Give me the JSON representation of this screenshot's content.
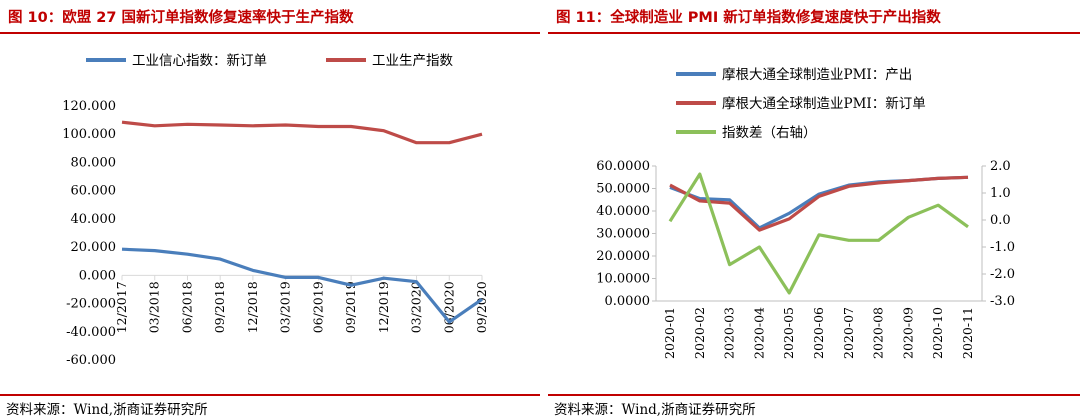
{
  "left": {
    "title": "图 10：欧盟 27 国新订单指数修复速率快于生产指数",
    "source": "资料来源：Wind,浙商证券研究所",
    "chart_data": {
      "type": "line",
      "title": "",
      "categories": [
        "12/2017",
        "03/2018",
        "06/2018",
        "09/2018",
        "12/2018",
        "03/2019",
        "06/2019",
        "09/2019",
        "12/2019",
        "03/2020",
        "06/2020",
        "09/2020"
      ],
      "series": [
        {
          "name": "工业信心指数：新订单",
          "color": "#4a7ebb",
          "values": [
            18.5,
            17.5,
            15,
            11.5,
            3.5,
            -1.5,
            -1.5,
            -7,
            -2,
            -4.5,
            -33,
            -17
          ]
        },
        {
          "name": "工业生产指数",
          "color": "#be4b48",
          "values": [
            108.5,
            106,
            107,
            106.5,
            106,
            106.5,
            105.5,
            105.5,
            102.5,
            94,
            94,
            100
          ]
        }
      ],
      "ylim": [
        -60,
        120
      ],
      "yticks": [
        120,
        100,
        80,
        60,
        40,
        20,
        0,
        -20,
        -40,
        -60
      ],
      "ytick_labels": [
        "120.000",
        "100.000",
        "80.000",
        "60.000",
        "40.000",
        "20.000",
        "0.000",
        "-20.000",
        "-40.000",
        "-60.000"
      ],
      "legend_position": "top"
    }
  },
  "right": {
    "title": "图 11：全球制造业 PMI 新订单指数修复速度快于产出指数",
    "source": "资料来源：Wind,浙商证券研究所",
    "chart_data": {
      "type": "line",
      "title": "",
      "categories": [
        "2020-01",
        "2020-02",
        "2020-03",
        "2020-04",
        "2020-05",
        "2020-06",
        "2020-07",
        "2020-08",
        "2020-09",
        "2020-10",
        "2020-11"
      ],
      "series": [
        {
          "name": "摩根大通全球制造业PMI：产出",
          "color": "#4a7ebb",
          "axis": "left",
          "values": [
            50.5,
            45.5,
            45,
            32.5,
            39,
            47.5,
            51.5,
            53,
            53.5,
            54.5,
            55
          ]
        },
        {
          "name": "摩根大通全球制造业PMI：新订单",
          "color": "#be4b48",
          "axis": "left",
          "values": [
            51.5,
            44.5,
            43.5,
            31.5,
            36.5,
            46.5,
            51,
            52.5,
            53.5,
            54.5,
            55
          ]
        },
        {
          "name": "指数差（右轴）",
          "color": "#8cc05a",
          "axis": "right",
          "values": [
            -0.05,
            1.7,
            -1.65,
            -1.0,
            -2.7,
            -0.55,
            -0.75,
            -0.75,
            0.1,
            0.55,
            -0.25
          ]
        }
      ],
      "ylim": [
        0,
        60
      ],
      "yticks": [
        60,
        50,
        40,
        30,
        20,
        10,
        0
      ],
      "ytick_labels": [
        "60.0000",
        "50.0000",
        "40.0000",
        "30.0000",
        "20.0000",
        "10.0000",
        "0.0000"
      ],
      "y2lim": [
        -3,
        2
      ],
      "y2ticks": [
        2,
        1,
        0,
        -1,
        -2,
        -3
      ],
      "y2tick_labels": [
        "2.0",
        "1.0",
        "0.0",
        "-1.0",
        "-2.0",
        "-3.0"
      ],
      "legend_position": "top"
    }
  }
}
